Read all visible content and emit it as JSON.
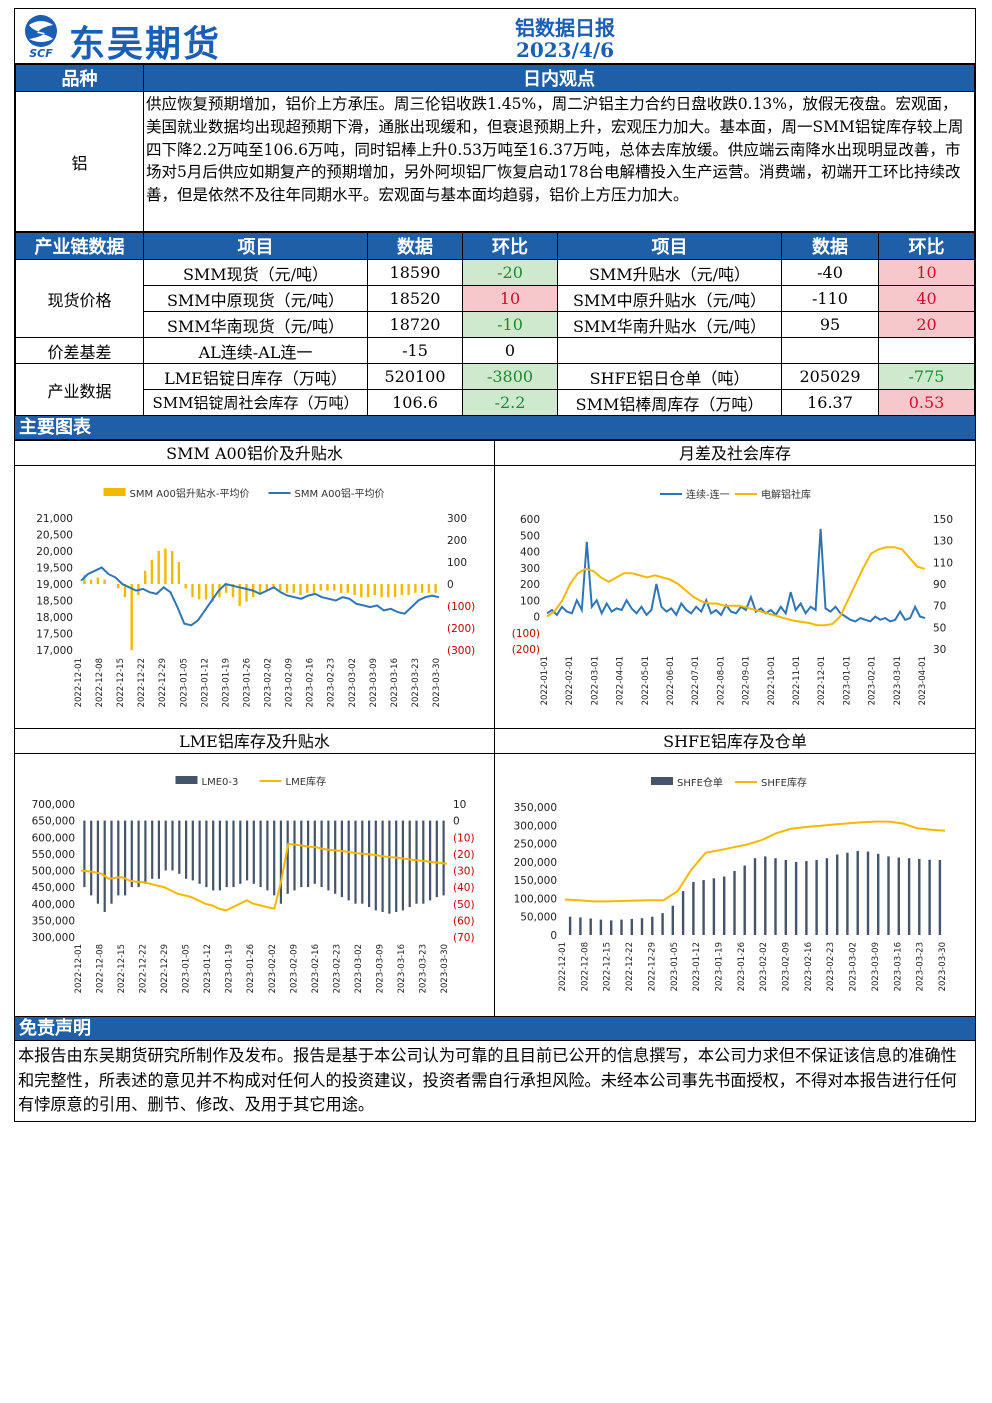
{
  "header": {
    "company": "东吴期货",
    "logo_abbr": "SCF",
    "title": "铝数据日报",
    "date": "2023/4/6"
  },
  "view": {
    "col_variety": "品种",
    "col_view": "日内观点",
    "variety": "铝",
    "text": "供应恢复预期增加，铝价上方承压。周三伦铝收跌1.45%，周二沪铝主力合约日盘收跌0.13%，放假无夜盘。宏观面，美国就业数据均出现超预期下滑，通胀出现缓和，但衰退预期上升，宏观压力加大。基本面，周一SMM铝锭库存较上周四下降2.2万吨至106.6万吨，同时铝棒上升0.53万吨至16.37万吨，总体去库放缓。供应端云南降水出现明显改善，市场对5月后供应如期复产的预期增加，另外阿坝铝厂恢复启动178台电解槽投入生产运营。消费端，初端开工环比持续改善，但是依然不及往年同期水平。宏观面与基本面均趋弱，铝价上方压力加大。"
  },
  "chain": {
    "headers": [
      "产业链数据",
      "项目",
      "数据",
      "环比",
      "项目",
      "数据",
      "环比"
    ],
    "group_spot": "现货价格",
    "group_spread": "价差基差",
    "group_industry": "产业数据",
    "rows": [
      {
        "l_item": "SMM现货（元/吨）",
        "l_val": "18590",
        "l_chg": "-20",
        "r_item": "SMM升贴水（元/吨）",
        "r_val": "-40",
        "r_chg": "10"
      },
      {
        "l_item": "SMM中原现货（元/吨）",
        "l_val": "18520",
        "l_chg": "10",
        "r_item": "SMM中原升贴水（元/吨）",
        "r_val": "-110",
        "r_chg": "40"
      },
      {
        "l_item": "SMM华南现货（元/吨）",
        "l_val": "18720",
        "l_chg": "-10",
        "r_item": "SMM华南升贴水（元/吨）",
        "r_val": "95",
        "r_chg": "20"
      },
      {
        "l_item": "AL连续-AL连一",
        "l_val": "-15",
        "l_chg": "0",
        "r_item": "",
        "r_val": "",
        "r_chg": ""
      },
      {
        "l_item": "LME铝锭日库存（万吨）",
        "l_val": "520100",
        "l_chg": "-3800",
        "r_item": "SHFE铝日仓单（吨）",
        "r_val": "205029",
        "r_chg": "-775"
      },
      {
        "l_item": "SMM铝锭周社会库存（万吨）",
        "l_val": "106.6",
        "l_chg": "-2.2",
        "r_item": "SMM铝棒周库存（万吨）",
        "r_val": "16.37",
        "r_chg": "0.53"
      }
    ]
  },
  "charts_section": "主要图表",
  "colors": {
    "blue_bar": "#1f5fa8",
    "line_blue": "#2e75b6",
    "line_gold": "#f5b800",
    "neg_red": "#c00000"
  },
  "chart_data": [
    {
      "type": "bar",
      "title": "SMM A00铝价及升贴水",
      "series": [
        {
          "name": "SMM A00铝升贴水-平均价",
          "axis": "right"
        },
        {
          "name": "SMM A00铝-平均价",
          "axis": "left"
        }
      ],
      "y_ticks": [
        "21,000",
        "20,500",
        "20,000",
        "19,500",
        "19,000",
        "18,500",
        "18,000",
        "17,500",
        "17,000"
      ],
      "y2_ticks": [
        "300",
        "200",
        "100",
        "0",
        "(100)",
        "(200)",
        "(300)"
      ],
      "ylim": [
        17000,
        21000
      ],
      "y2lim": [
        -300,
        300
      ],
      "x_ticks": [
        "2022-12-01",
        "2022-12-08",
        "2022-12-15",
        "2022-12-22",
        "2022-12-29",
        "2023-01-05",
        "2023-01-12",
        "2023-01-19",
        "2023-01-26",
        "2023-02-02",
        "2023-02-09",
        "2023-02-16",
        "2023-02-23",
        "2023-03-02",
        "2023-03-09",
        "2023-03-16",
        "2023-03-23",
        "2023-03-30"
      ],
      "price": [
        19100,
        19300,
        19400,
        19500,
        19300,
        19200,
        19000,
        18900,
        18800,
        18850,
        18750,
        18700,
        18900,
        18750,
        18300,
        17800,
        17750,
        17900,
        18200,
        18500,
        18800,
        19000,
        18950,
        18900,
        18850,
        18800,
        18700,
        18800,
        18900,
        18750,
        18650,
        18600,
        18550,
        18650,
        18700,
        18600,
        18550,
        18500,
        18600,
        18550,
        18400,
        18350,
        18300,
        18350,
        18200,
        18250,
        18150,
        18100,
        18300,
        18500,
        18600,
        18650,
        18600
      ],
      "premium": [
        40,
        20,
        30,
        20,
        0,
        -20,
        -60,
        -300,
        -50,
        60,
        110,
        150,
        160,
        150,
        100,
        -20,
        -60,
        -70,
        -70,
        -80,
        -60,
        -40,
        -60,
        -100,
        -80,
        -60,
        -40,
        -30,
        -20,
        -30,
        -40,
        -40,
        -50,
        -40,
        -40,
        -30,
        -30,
        -30,
        -40,
        -40,
        -50,
        -60,
        -60,
        -50,
        -60,
        -60,
        -60,
        -50,
        -50,
        -40,
        -40,
        -40,
        -40
      ]
    },
    {
      "type": "line",
      "title": "月差及社会库存",
      "series": [
        {
          "name": "连续-连一",
          "axis": "left"
        },
        {
          "name": "电解铝社库",
          "axis": "right"
        }
      ],
      "y_ticks": [
        "600",
        "500",
        "400",
        "300",
        "200",
        "100",
        "0",
        "(100)",
        "(200)"
      ],
      "y2_ticks": [
        "150",
        "130",
        "110",
        "90",
        "70",
        "50",
        "30"
      ],
      "ylim": [
        -200,
        600
      ],
      "y2lim": [
        30,
        150
      ],
      "x_ticks": [
        "2022-01-01",
        "2022-02-01",
        "2022-03-01",
        "2022-04-01",
        "2022-05-01",
        "2022-06-01",
        "2022-07-01",
        "2022-08-01",
        "2022-09-01",
        "2022-10-01",
        "2022-11-01",
        "2022-12-01",
        "2023-01-01",
        "2023-02-01",
        "2023-03-01",
        "2023-04-01"
      ],
      "spread": [
        20,
        40,
        10,
        60,
        30,
        20,
        100,
        40,
        460,
        60,
        100,
        20,
        80,
        30,
        50,
        40,
        100,
        50,
        20,
        60,
        10,
        40,
        200,
        60,
        30,
        50,
        10,
        80,
        40,
        20,
        60,
        30,
        100,
        20,
        40,
        10,
        70,
        30,
        20,
        60,
        40,
        120,
        30,
        50,
        20,
        40,
        10,
        60,
        20,
        150,
        40,
        80,
        20,
        60,
        40,
        540,
        50,
        30,
        60,
        20,
        0,
        -20,
        -30,
        -10,
        -20,
        -30,
        0,
        -20,
        -10,
        -30,
        -20,
        30,
        -20,
        -10,
        60,
        0,
        -10
      ],
      "inventory": [
        60,
        65,
        75,
        90,
        100,
        104,
        102,
        96,
        92,
        96,
        100,
        100,
        98,
        96,
        98,
        96,
        94,
        90,
        84,
        78,
        74,
        72,
        72,
        70,
        70,
        70,
        68,
        66,
        64,
        62,
        60,
        58,
        56,
        55,
        54,
        52,
        52,
        53,
        60,
        75,
        90,
        105,
        118,
        122,
        124,
        124,
        122,
        114,
        106,
        104
      ]
    },
    {
      "type": "bar",
      "title": "LME铝库存及升贴水",
      "series": [
        {
          "name": "LME0-3",
          "axis": "right"
        },
        {
          "name": "LME库存",
          "axis": "left"
        }
      ],
      "y_ticks": [
        "700,000",
        "650,000",
        "600,000",
        "550,000",
        "500,000",
        "450,000",
        "400,000",
        "350,000",
        "300,000"
      ],
      "y2_ticks": [
        "10",
        "0",
        "(10)",
        "(20)",
        "(30)",
        "(40)",
        "(50)",
        "(60)",
        "(70)"
      ],
      "ylim": [
        300000,
        700000
      ],
      "y2lim": [
        -70,
        10
      ],
      "x_ticks": [
        "2022-12-01",
        "2022-12-08",
        "2022-12-15",
        "2022-12-22",
        "2022-12-29",
        "2023-01-05",
        "2023-01-12",
        "2023-01-19",
        "2023-01-26",
        "2023-02-02",
        "2023-02-09",
        "2023-02-16",
        "2023-02-23",
        "2023-03-02",
        "2023-03-09",
        "2023-03-16",
        "2023-03-23",
        "2023-03-30"
      ],
      "inventory": [
        500000,
        498000,
        495000,
        490000,
        475000,
        478000,
        480000,
        470000,
        466000,
        465000,
        460000,
        455000,
        450000,
        440000,
        430000,
        425000,
        420000,
        410000,
        400000,
        395000,
        385000,
        380000,
        390000,
        400000,
        410000,
        400000,
        395000,
        390000,
        385000,
        470000,
        580000,
        578000,
        575000,
        572000,
        570000,
        565000,
        562000,
        560000,
        558000,
        555000,
        552000,
        550000,
        548000,
        545000,
        542000,
        540000,
        538000,
        535000,
        532000,
        530000,
        528000,
        525000,
        523000,
        520100
      ],
      "spread": [
        -40,
        -45,
        -50,
        -55,
        -50,
        -45,
        -45,
        -40,
        -40,
        -38,
        -35,
        -35,
        -30,
        -30,
        -32,
        -35,
        -36,
        -38,
        -40,
        -42,
        -42,
        -40,
        -40,
        -38,
        -36,
        -38,
        -40,
        -42,
        -45,
        -50,
        -44,
        -42,
        -40,
        -40,
        -38,
        -40,
        -42,
        -44,
        -46,
        -48,
        -50,
        -50,
        -52,
        -54,
        -55,
        -56,
        -55,
        -54,
        -52,
        -50,
        -50,
        -48,
        -46,
        -45
      ]
    },
    {
      "type": "bar",
      "title": "SHFE铝库存及仓单",
      "series": [
        {
          "name": "SHFE仓单"
        },
        {
          "name": "SHFE库存"
        }
      ],
      "y_ticks": [
        "350,000",
        "300,000",
        "250,000",
        "200,000",
        "150,000",
        "100,000",
        "50,000",
        "0"
      ],
      "ylim": [
        0,
        350000
      ],
      "x_ticks": [
        "2022-12-01",
        "2022-12-08",
        "2022-12-15",
        "2022-12-22",
        "2022-12-29",
        "2023-01-05",
        "2023-01-12",
        "2023-01-19",
        "2023-01-26",
        "2023-02-02",
        "2023-02-09",
        "2023-02-16",
        "2023-02-23",
        "2023-03-02",
        "2023-03-09",
        "2023-03-16",
        "2023-03-23",
        "2023-03-30"
      ],
      "stock": [
        97000,
        95000,
        92000,
        92000,
        93000,
        94000,
        95000,
        95000,
        120000,
        180000,
        225000,
        232000,
        240000,
        248000,
        260000,
        278000,
        290000,
        295000,
        298000,
        302000,
        305000,
        308000,
        310000,
        310000,
        305000,
        292000,
        288000,
        285000
      ],
      "warrant": [
        50000,
        48000,
        45000,
        42000,
        40000,
        42000,
        44000,
        46000,
        50000,
        60000,
        80000,
        120000,
        145000,
        150000,
        155000,
        160000,
        175000,
        190000,
        210000,
        215000,
        210000,
        205000,
        200000,
        202000,
        205000,
        210000,
        220000,
        225000,
        230000,
        228000,
        222000,
        215000,
        212000,
        210000,
        208000,
        206000,
        205029
      ]
    }
  ],
  "disclaimer": {
    "label": "免责声明",
    "text": "本报告由东吴期货研究所制作及发布。报告是基于本公司认为可靠的且目前已公开的信息撰写，本公司力求但不保证该信息的准确性和完整性，所表述的意见并不构成对任何人的投资建议，投资者需自行承担风险。未经本公司事先书面授权，不得对本报告进行任何有悖原意的引用、删节、修改、及用于其它用途。"
  }
}
